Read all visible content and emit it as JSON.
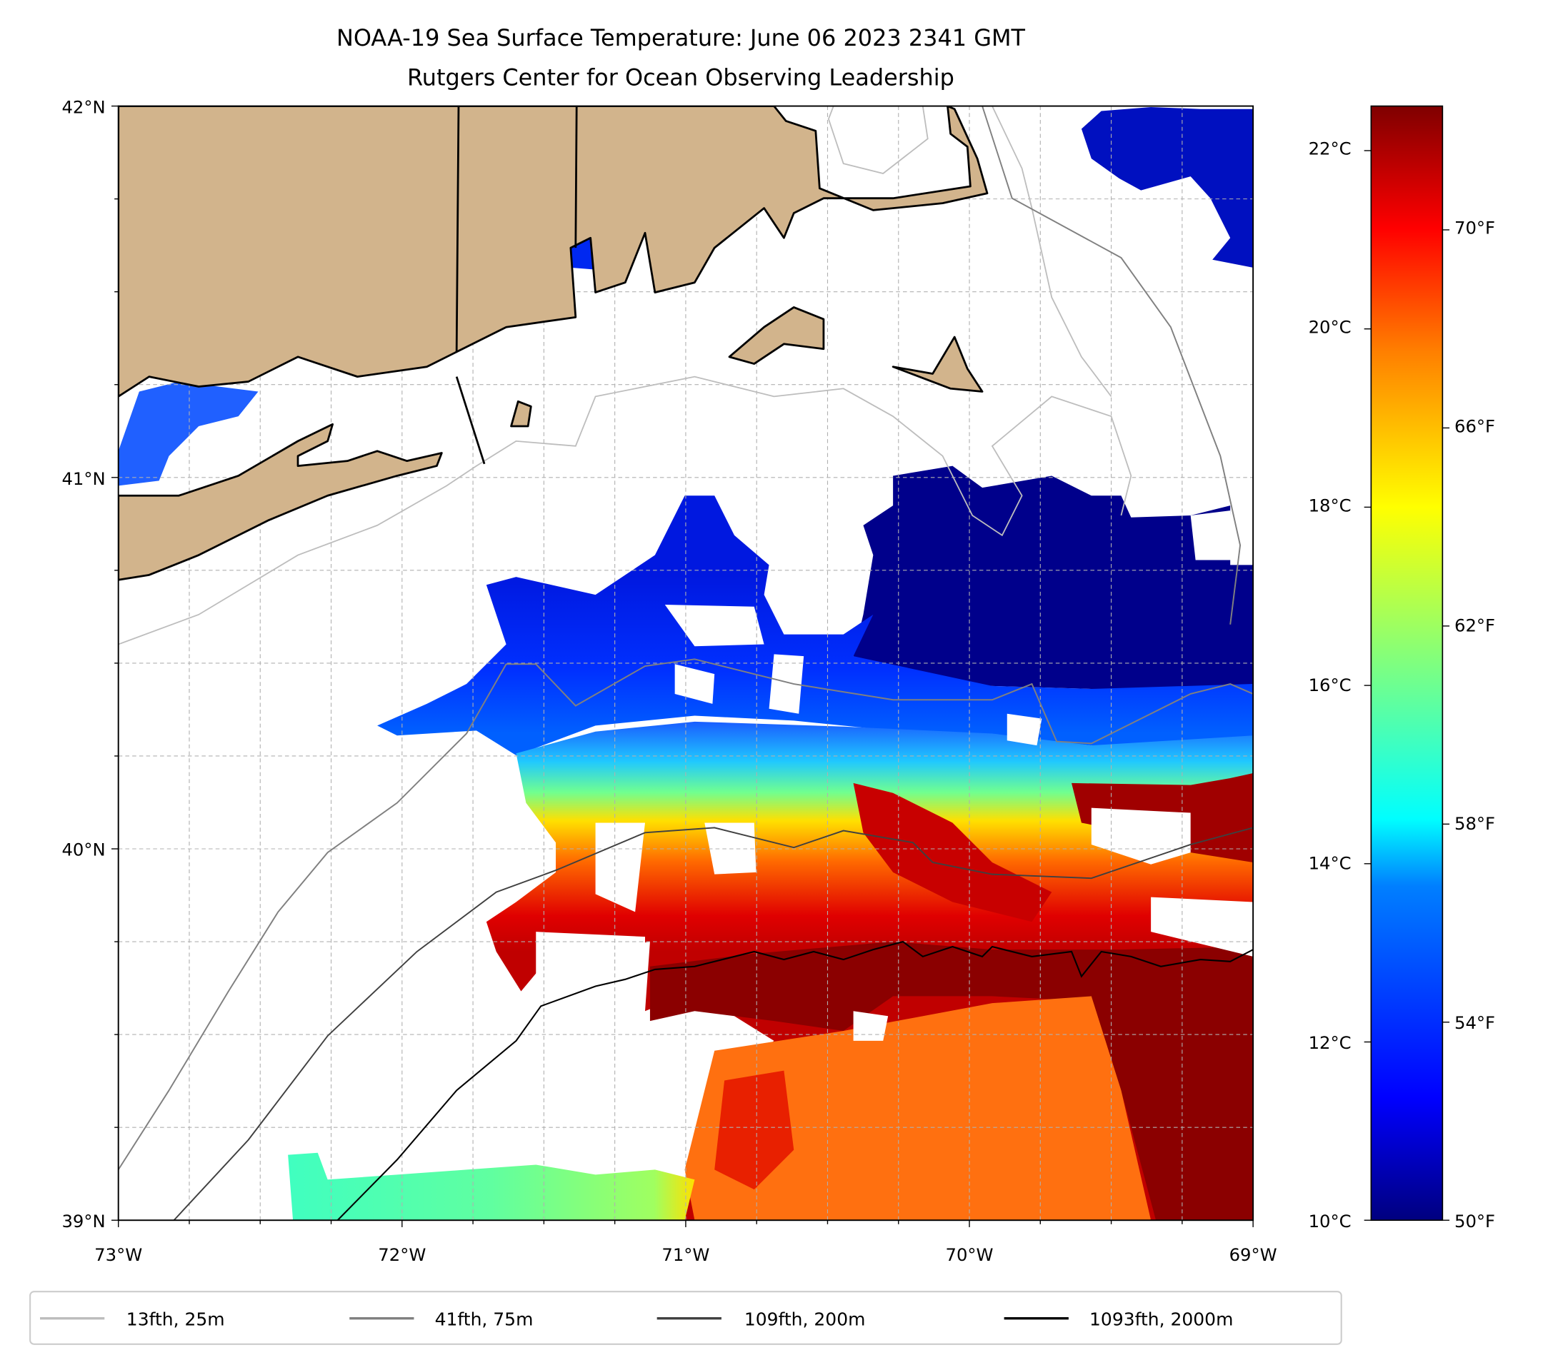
{
  "title": {
    "line1": "NOAA-19 Sea Surface Temperature: June 06 2023 2341 GMT",
    "line2": "Rutgers Center for Ocean Observing Leadership"
  },
  "axes": {
    "lat_ticks": [
      "42°N",
      "41°N",
      "40°N",
      "39°N"
    ],
    "lon_ticks": [
      "73°W",
      "72°W",
      "71°W",
      "70°W",
      "69°W"
    ],
    "lat_range": [
      39,
      42
    ],
    "lon_range": [
      -73,
      -69
    ]
  },
  "colorbar": {
    "celsius_ticks": [
      "10°C",
      "12°C",
      "14°C",
      "16°C",
      "18°C",
      "20°C",
      "22°C"
    ],
    "fahrenheit_ticks": [
      "50°F",
      "54°F",
      "58°F",
      "62°F",
      "66°F",
      "70°F"
    ],
    "range_celsius": [
      10,
      22.5
    ],
    "colormap": "jet",
    "colors": [
      "#00007f",
      "#0000ff",
      "#007fff",
      "#00ffff",
      "#7fff7f",
      "#ffff00",
      "#ff7f00",
      "#ff0000",
      "#7f0000"
    ]
  },
  "legend": {
    "items": [
      {
        "label": "13fth, 25m",
        "color": "#bdbdbd"
      },
      {
        "label": "41fth, 75m",
        "color": "#808080"
      },
      {
        "label": "109fth, 200m",
        "color": "#404040"
      },
      {
        "label": "1093fth, 2000m",
        "color": "#000000"
      }
    ]
  },
  "colors": {
    "land": "#d2b48c",
    "ocean_nodata": "#ffffff"
  }
}
